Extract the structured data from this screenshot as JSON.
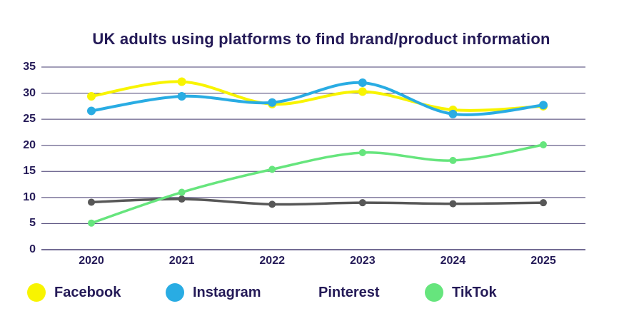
{
  "chart_data": {
    "type": "line",
    "title": "UK adults using platforms to find brand/product information",
    "categories": [
      "2020",
      "2021",
      "2022",
      "2023",
      "2024",
      "2025"
    ],
    "y_ticks": [
      0,
      5,
      10,
      15,
      20,
      25,
      30,
      35
    ],
    "ylim": [
      0,
      35
    ],
    "xlabel": "",
    "ylabel": "",
    "grid": "horizontal",
    "legend_position": "bottom",
    "series": [
      {
        "name": "Facebook",
        "color": "#F8F400",
        "legend_swatch": "#F8F400",
        "values": [
          29.4,
          32.2,
          27.9,
          30.3,
          26.8,
          27.5
        ]
      },
      {
        "name": "Instagram",
        "color": "#29ACE3",
        "legend_swatch": "#29ACE3",
        "values": [
          26.6,
          29.4,
          28.2,
          32.0,
          26.0,
          27.7
        ]
      },
      {
        "name": "Pinterest",
        "color": "#575757",
        "legend_swatch": "transparent",
        "values": [
          9.1,
          9.7,
          8.7,
          9.0,
          8.8,
          9.0
        ]
      },
      {
        "name": "TikTok",
        "color": "#66E57D",
        "legend_swatch": "#66E57D",
        "values": [
          5.1,
          11.0,
          15.4,
          18.6,
          17.1,
          20.1
        ]
      }
    ],
    "colors": {
      "text": "#241A57",
      "grid": "#241A57",
      "background": "#FFFFFF"
    }
  }
}
